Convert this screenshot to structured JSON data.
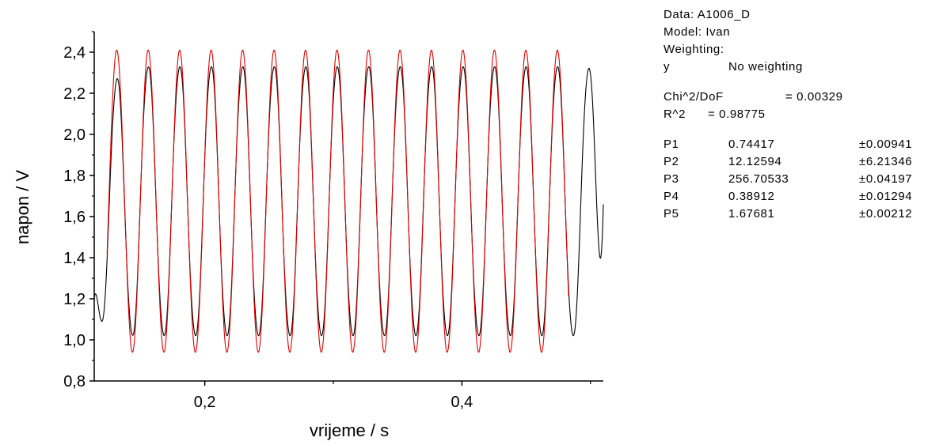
{
  "chart_data": {
    "type": "line",
    "xlabel": "vrijeme / s",
    "ylabel": "napon / V",
    "xlim": [
      0.114,
      0.51
    ],
    "ylim": [
      0.8,
      2.5
    ],
    "x_ticks": [
      "0,2",
      "0,4"
    ],
    "x_tick_values": [
      0.2,
      0.4
    ],
    "y_ticks": [
      "0,8",
      "1,0",
      "1,2",
      "1,4",
      "1,6",
      "1,8",
      "2,0",
      "2,2",
      "2,4"
    ],
    "y_tick_values": [
      0.8,
      1.0,
      1.2,
      1.4,
      1.6,
      1.8,
      2.0,
      2.2,
      2.4
    ],
    "grid": false,
    "series": [
      {
        "kind": "measured",
        "color": "#000000",
        "x_range": [
          0.114,
          0.51
        ],
        "approx_model": {
          "offset": 1.675,
          "amplitude": 0.665,
          "frequency_hz": 40.85,
          "peak_at_x": 0.1315
        },
        "start_value": 1.2,
        "end_value": 1.66
      },
      {
        "kind": "fit",
        "color": "#e00000",
        "x_range": [
          0.124,
          0.483
        ],
        "model": {
          "P1": 0.74417,
          "P2": 12.12594,
          "P3": 256.70533,
          "P4": 0.38912,
          "P5": 1.67681
        },
        "approx_peak": 2.41,
        "approx_trough": 0.94
      }
    ]
  },
  "fit_box": {
    "data_line": "Data: A1006_D",
    "model_line": "Model: Ivan",
    "weighting_line": "Weighting:",
    "y_key": "y",
    "y_value": "No weighting",
    "chi_key": "Chi^2/DoF",
    "chi_value": "= 0.00329",
    "r_key": "R^2",
    "r_value": "= 0.98775",
    "params": [
      {
        "name": "P1",
        "value": "0.74417",
        "error": "±0.00941"
      },
      {
        "name": "P2",
        "value": "12.12594",
        "error": "±6.21346"
      },
      {
        "name": "P3",
        "value": "256.70533",
        "error": "±0.04197"
      },
      {
        "name": "P4",
        "value": "0.38912",
        "error": "±0.01294"
      },
      {
        "name": "P5",
        "value": "1.67681",
        "error": "±0.00212"
      }
    ]
  }
}
